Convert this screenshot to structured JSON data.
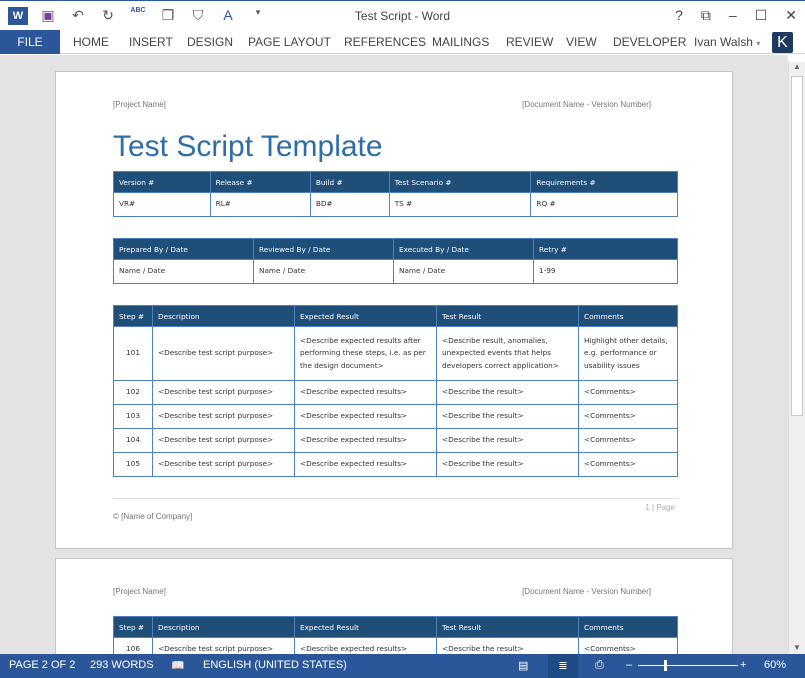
{
  "window": {
    "title": "Test Script - Word",
    "help": "?",
    "restore": "⧉",
    "min": "–",
    "max": "☐",
    "close": "✕"
  },
  "qat": {
    "word": "W",
    "save": "💾",
    "undo": "↶",
    "redo": "↻",
    "spell": "ABC",
    "more": "▾"
  },
  "ribbon": {
    "file": "FILE",
    "tabs": [
      "HOME",
      "INSERT",
      "DESIGN",
      "PAGE LAYOUT",
      "REFERENCES",
      "MAILINGS",
      "REVIEW",
      "VIEW",
      "DEVELOPER"
    ],
    "user": "Ivan Walsh",
    "avatar": "K"
  },
  "page1": {
    "header_left": "[Project Name]",
    "header_right": "[Document Name - Version Number]",
    "title": "Test Script Template",
    "table1": {
      "headers": [
        "Version #",
        "Release #",
        "Build #",
        "Test Scenario #",
        "Requirements #"
      ],
      "row": [
        "VR#",
        "RL#",
        "BD#",
        "TS #",
        "RQ #"
      ]
    },
    "table2": {
      "headers": [
        "Prepared By  / Date",
        "Reviewed By  / Date",
        "Executed By / Date",
        "Retry #"
      ],
      "row": [
        "Name / Date",
        "Name / Date",
        "Name / Date",
        "1-99"
      ]
    },
    "table3": {
      "headers": [
        "Step #",
        "Description",
        "Expected Result",
        "Test Result",
        "Comments"
      ],
      "rows": [
        [
          "101",
          "<Describe test script purpose>",
          "<Describe expected results after performing these steps, i.e. as per the design document>",
          "<Describe result, anomalies, unexpected events that helps developers correct application>",
          "Highlight other details, e.g. performance or usability issues"
        ],
        [
          "102",
          "<Describe test script purpose>",
          "<Describe expected results>",
          "<Describe the result>",
          "<Comments>"
        ],
        [
          "103",
          "<Describe test script purpose>",
          "<Describe expected results>",
          "<Describe the result>",
          "<Comments>"
        ],
        [
          "104",
          "<Describe test script purpose>",
          "<Describe expected results>",
          "<Describe the result>",
          "<Comments>"
        ],
        [
          "105",
          "<Describe test script purpose>",
          "<Describe expected results>",
          "<Describe the result>",
          "<Comments>"
        ]
      ]
    },
    "page_number": "1 | Page",
    "footer": "© [Name of Company]"
  },
  "page2": {
    "header_left": "[Project Name]",
    "header_right": "[Document Name - Version Number]",
    "table": {
      "headers": [
        "Step #",
        "Description",
        "Expected Result",
        "Test Result",
        "Comments"
      ],
      "row": [
        "106",
        "<Describe test script purpose>",
        "<Describe expected results>",
        "<Describe the result>",
        "<Comments>"
      ]
    }
  },
  "status": {
    "page": "PAGE 2 OF 2",
    "words": "293 WORDS",
    "language": "ENGLISH (UNITED STATES)",
    "zoom": "60%",
    "zoom_percent": 60
  }
}
